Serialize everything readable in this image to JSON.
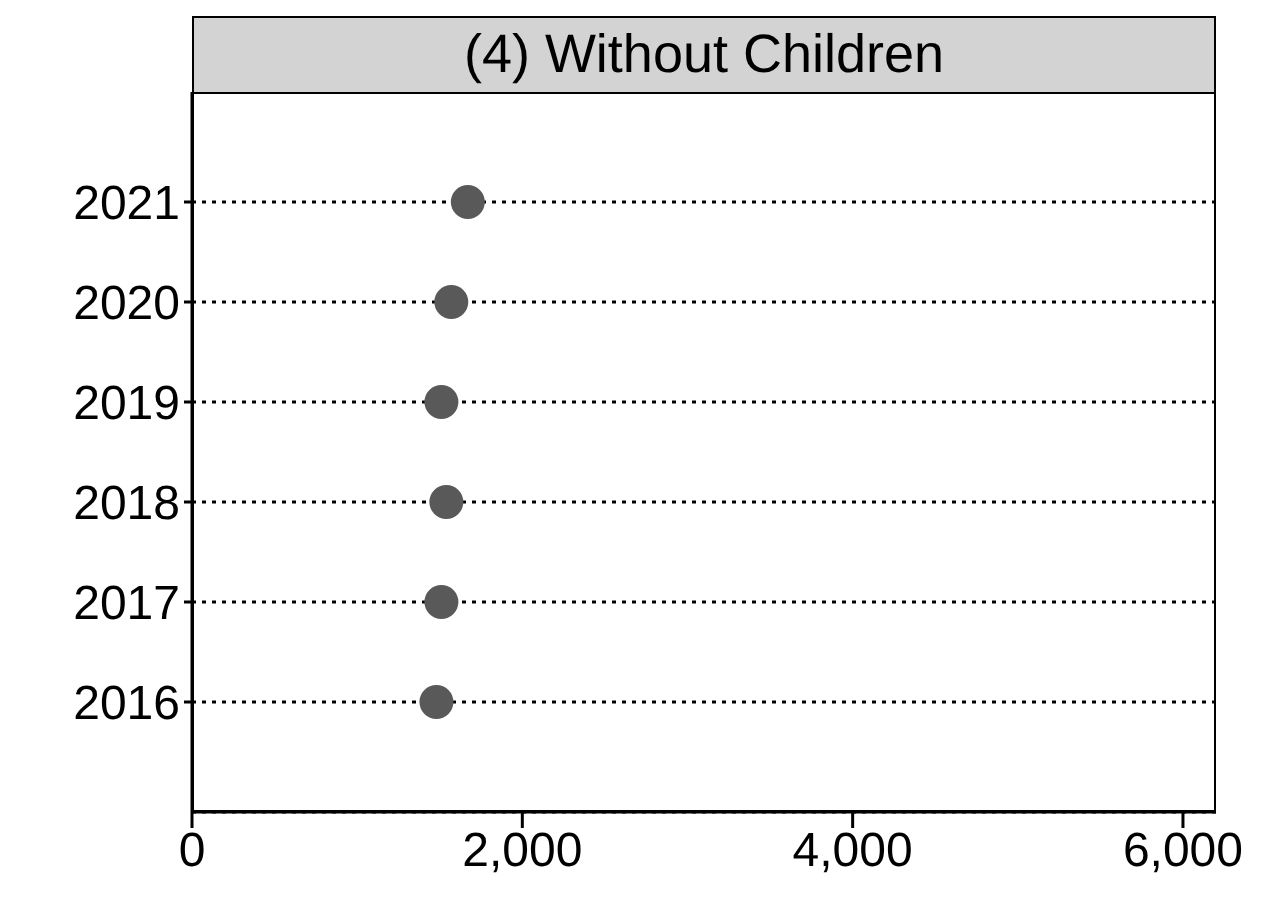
{
  "chart_data": {
    "type": "scatter",
    "title": "(4) Without Children",
    "orientation": "horizontal",
    "categories": [
      "2021",
      "2020",
      "2019",
      "2018",
      "2017",
      "2016"
    ],
    "values": [
      1670,
      1570,
      1510,
      1540,
      1510,
      1480
    ],
    "color": "#595959",
    "marker": "circle",
    "grid": "y",
    "line_style": "dotted",
    "xlim": [
      0,
      6200
    ],
    "xticks": [
      {
        "value": 0,
        "label": "0"
      },
      {
        "value": 2000,
        "label": "2,000"
      },
      {
        "value": 4000,
        "label": "4,000"
      },
      {
        "value": 6000,
        "label": "6,000"
      }
    ]
  }
}
